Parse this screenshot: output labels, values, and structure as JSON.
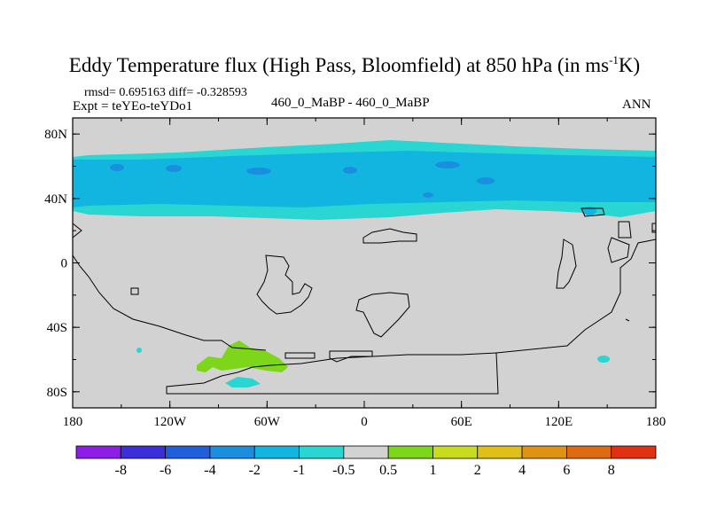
{
  "chart_data": {
    "type": "heatmap",
    "title_main": "Eddy Temperature flux (High Pass, Bloomfield) at 850 hPa (in ms",
    "title_sup": "-1",
    "title_tail": "K)",
    "stats": "rmsd= 0.695163 diff= -0.328593",
    "expt": "Expt = teYEo-teYDo1",
    "comparison": "460_0_MaBP - 460_0_MaBP",
    "season": "ANN",
    "x_ticks": [
      "180",
      "120W",
      "60W",
      "0",
      "60E",
      "120E",
      "180"
    ],
    "y_ticks": [
      "80N",
      "40N",
      "0",
      "40S",
      "80S"
    ],
    "xlim": [
      -180,
      180
    ],
    "ylim": [
      -90,
      90
    ],
    "colorbar": {
      "labels": [
        "-8",
        "-6",
        "-4",
        "-2",
        "-1",
        "-0.5",
        "0.5",
        "1",
        "2",
        "4",
        "6",
        "8"
      ],
      "colors": [
        "#8c1ee6",
        "#3a2fd8",
        "#1f5fdc",
        "#1a8fe0",
        "#12b5e0",
        "#2ad6d2",
        "#d2d2d2",
        "#7ed61a",
        "#c8dc1e",
        "#e0c018",
        "#e09214",
        "#e06a12",
        "#e03212"
      ]
    },
    "fields": [
      {
        "value_range": [
          -1,
          -0.5
        ],
        "region": "band 25N-70N all longitudes"
      },
      {
        "value_range": [
          -2,
          -1
        ],
        "region": "band 38N-66N all longitudes"
      },
      {
        "value_range": [
          -4,
          -2
        ],
        "region": "small patches near 45N-60N"
      },
      {
        "value_range": [
          0.5,
          1
        ],
        "region": "patch near 105W-50W, 50S-70S"
      },
      {
        "value_range": [
          -1,
          -0.5
        ],
        "region": "patch near 90W-65W, 75S"
      }
    ]
  }
}
